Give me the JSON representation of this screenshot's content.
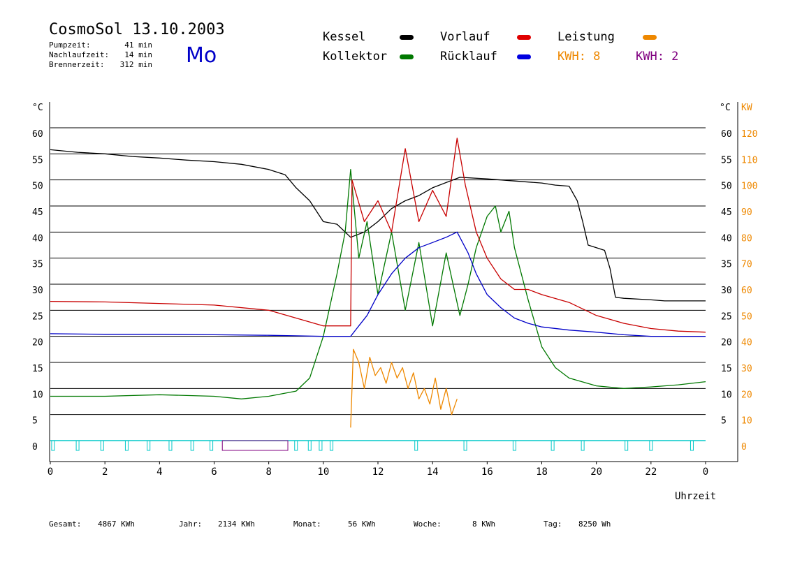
{
  "header": {
    "title": "CosmoSol 13.10.2003",
    "weekday": "Mo",
    "stats": [
      {
        "label": "Pumpzeit:",
        "value": "41 min"
      },
      {
        "label": "Nachlaufzeit:",
        "value": "14 min"
      },
      {
        "label": "Brennerzeit:",
        "value": "312 min"
      }
    ]
  },
  "legend": {
    "kessel": "Kessel",
    "kollektor": "Kollektor",
    "vorlauf": "Vorlauf",
    "ruecklauf": "Rücklauf",
    "leistung": "Leistung",
    "kwh_a": "KWH: 8",
    "kwh_b": "KWH: 2"
  },
  "colors": {
    "kessel": "#000000",
    "kollektor": "#007800",
    "vorlauf": "#c80000",
    "ruecklauf": "#0000c8",
    "leistung": "#ee8800",
    "kwh_b": "#800080",
    "pump": "#00c8c8",
    "burner": "#800080"
  },
  "footer": [
    {
      "label": "Gesamt:",
      "value": "4867 KWh"
    },
    {
      "label": "Jahr:",
      "value": "2134 KWh"
    },
    {
      "label": "Monat:",
      "value": "56 KWh"
    },
    {
      "label": "Woche:",
      "value": "8 KWh"
    },
    {
      "label": "Tag:",
      "value": "8250 Wh"
    }
  ],
  "chart_data": {
    "type": "line",
    "xlabel": "Uhrzeit",
    "ylabel_left": "°C",
    "ylabel_right_temp": "°C",
    "ylabel_right_power": "KW",
    "xlim": [
      0,
      24
    ],
    "ylim": [
      0,
      60
    ],
    "ylim_power": [
      0,
      120
    ],
    "x_ticks": [
      "0",
      "2",
      "4",
      "6",
      "8",
      "10",
      "12",
      "14",
      "16",
      "18",
      "20",
      "22",
      "0"
    ],
    "y_ticks_left": [
      "0",
      "5",
      "10",
      "15",
      "20",
      "25",
      "30",
      "35",
      "40",
      "45",
      "50",
      "55",
      "60"
    ],
    "y_ticks_right": [
      "5",
      "10",
      "15",
      "20",
      "25",
      "30",
      "35",
      "40",
      "45",
      "50",
      "55",
      "60"
    ],
    "y_ticks_power": [
      "0",
      "10",
      "20",
      "30",
      "40",
      "50",
      "60",
      "70",
      "80",
      "90",
      "100",
      "110",
      "120"
    ],
    "grid": true,
    "series": [
      {
        "name": "Kessel",
        "x": [
          0,
          1,
          2,
          3,
          4,
          5,
          6,
          7,
          8,
          8.6,
          9,
          9.5,
          10,
          10.5,
          11,
          11.5,
          12,
          12.5,
          13,
          13.5,
          14,
          14.5,
          15,
          16,
          17,
          18,
          18.5,
          19,
          19.3,
          19.5,
          19.7,
          20,
          20.3,
          20.5,
          20.7,
          21,
          22,
          22.5,
          23,
          24
        ],
        "y": [
          55.8,
          55.3,
          55.0,
          54.5,
          54.2,
          53.8,
          53.5,
          53.0,
          52.0,
          51.0,
          48.5,
          46.0,
          42.0,
          41.5,
          39.0,
          40.0,
          42.0,
          44.5,
          46.0,
          47.0,
          48.5,
          49.5,
          50.5,
          50.2,
          49.8,
          49.4,
          49.0,
          48.8,
          46.0,
          42.0,
          37.5,
          37.0,
          36.5,
          33.0,
          27.5,
          27.3,
          27.0,
          26.8,
          26.8,
          26.8
        ]
      },
      {
        "name": "Kollektor",
        "x": [
          0,
          2,
          4,
          6,
          7,
          8,
          9,
          9.5,
          10,
          10.5,
          10.8,
          11,
          11.3,
          11.6,
          12,
          12.5,
          13,
          13.5,
          14,
          14.5,
          15,
          15.3,
          15.6,
          16,
          16.3,
          16.5,
          16.8,
          17,
          17.5,
          18,
          18.5,
          19,
          20,
          21,
          22,
          23,
          24
        ],
        "y": [
          8.5,
          8.5,
          8.8,
          8.5,
          8.0,
          8.5,
          9.5,
          12.0,
          20.0,
          32.0,
          40.0,
          52.0,
          35.0,
          42.0,
          28.0,
          40.0,
          25.0,
          38.0,
          22.0,
          36.0,
          24.0,
          30.0,
          37.0,
          43.0,
          45.0,
          40.0,
          44.0,
          37.0,
          27.0,
          18.0,
          14.0,
          12.0,
          10.5,
          10.0,
          10.3,
          10.7,
          11.3
        ]
      },
      {
        "name": "Vorlauf",
        "x": [
          0,
          2,
          4,
          6,
          8,
          9,
          10,
          10.5,
          11,
          11.05,
          11.5,
          12,
          12.5,
          13,
          13.5,
          14,
          14.5,
          14.9,
          15.2,
          15.6,
          16,
          16.5,
          17,
          17.5,
          18,
          19,
          20,
          21,
          22,
          23,
          24
        ],
        "y": [
          26.7,
          26.6,
          26.3,
          26.0,
          25.0,
          23.5,
          22.0,
          22.0,
          22.0,
          50.0,
          42.0,
          46.0,
          40.0,
          56.0,
          42.0,
          48.0,
          43.0,
          58.0,
          49.0,
          40.0,
          35.0,
          31.0,
          29.0,
          29.0,
          28.0,
          26.5,
          24.0,
          22.5,
          21.5,
          21.0,
          20.8
        ]
      },
      {
        "name": "Rücklauf",
        "x": [
          0,
          2,
          4,
          6,
          8,
          9,
          10,
          10.5,
          11,
          11.3,
          11.6,
          12,
          12.5,
          13,
          13.5,
          14,
          14.5,
          14.9,
          15.3,
          15.6,
          16,
          16.5,
          17,
          17.5,
          18,
          19,
          20,
          21,
          22,
          23,
          24
        ],
        "y": [
          20.5,
          20.4,
          20.4,
          20.3,
          20.2,
          20.1,
          20.0,
          20.0,
          20.0,
          22.0,
          24.0,
          28.0,
          32.0,
          35.0,
          37.0,
          38.0,
          39.0,
          40.0,
          36.0,
          32.0,
          28.0,
          25.5,
          23.5,
          22.5,
          21.8,
          21.2,
          20.8,
          20.3,
          20.0,
          20.0,
          20.0
        ]
      },
      {
        "name": "Leistung",
        "x": [
          11,
          11.1,
          11.3,
          11.5,
          11.7,
          11.9,
          12.1,
          12.3,
          12.5,
          12.7,
          12.9,
          13.1,
          13.3,
          13.5,
          13.7,
          13.9,
          14.1,
          14.3,
          14.5,
          14.7,
          14.9
        ],
        "y": [
          5,
          35,
          30,
          20,
          32,
          25,
          28,
          22,
          30,
          24,
          28,
          20,
          26,
          16,
          20,
          14,
          24,
          12,
          20,
          10,
          16
        ]
      }
    ]
  }
}
